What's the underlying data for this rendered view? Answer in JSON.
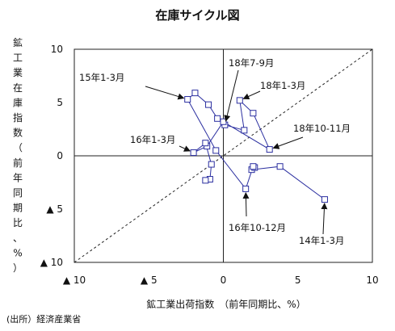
{
  "chart_data": {
    "type": "scatter",
    "title": "在庫サイクル図",
    "xlabel": "鉱工業出荷指数　（前年同期比、%）",
    "ylabel_chars": [
      "鉱",
      "工",
      "業",
      "在",
      "庫",
      "指",
      "数",
      "（",
      "前",
      "年",
      "同",
      "期",
      "比",
      "、",
      "%",
      "）"
    ],
    "source": "(出所）経済産業省",
    "xlim": [
      -10,
      10
    ],
    "ylim": [
      -10,
      10
    ],
    "x_ticks": [
      {
        "value": -10,
        "label": "▲ 10"
      },
      {
        "value": -5,
        "label": "▲ 5"
      },
      {
        "value": 0,
        "label": "0"
      },
      {
        "value": 5,
        "label": "5"
      },
      {
        "value": 10,
        "label": "10"
      }
    ],
    "y_ticks": [
      {
        "value": 10,
        "label": "10"
      },
      {
        "value": 5,
        "label": "5"
      },
      {
        "value": 0,
        "label": "0"
      },
      {
        "value": -5,
        "label": "▲ 5"
      },
      {
        "value": -10,
        "label": "▲ 10"
      }
    ],
    "reference_line": {
      "from": [
        -10,
        -10
      ],
      "to": [
        10,
        10
      ],
      "style": "dashed"
    },
    "series": [
      {
        "line_color": "#2b2fa0",
        "points": [
          {
            "x": 6.8,
            "y": -4.1
          },
          {
            "x": 3.8,
            "y": -1.0
          },
          {
            "x": 1.9,
            "y": -1.3
          },
          {
            "x": 2.1,
            "y": -1.1
          },
          {
            "x": 2.0,
            "y": -1.0
          },
          {
            "x": 1.5,
            "y": -3.1
          },
          {
            "x": -0.5,
            "y": 0.5
          },
          {
            "x": -2.4,
            "y": 5.3
          },
          {
            "x": -1.9,
            "y": 5.9
          },
          {
            "x": -1.0,
            "y": 4.8
          },
          {
            "x": -0.4,
            "y": 3.5
          },
          {
            "x": 0.1,
            "y": 2.9
          },
          {
            "x": 1.4,
            "y": 2.4
          },
          {
            "x": 1.1,
            "y": 5.2
          },
          {
            "x": 2.0,
            "y": 4.0
          },
          {
            "x": 3.1,
            "y": 0.6
          },
          {
            "x": 0.0,
            "y": 3.2
          },
          {
            "x": -1.1,
            "y": 0.9
          },
          {
            "x": -2.0,
            "y": 0.3
          },
          {
            "x": -1.2,
            "y": 1.2
          },
          {
            "x": -0.8,
            "y": -0.8
          },
          {
            "x": -0.9,
            "y": -2.2
          },
          {
            "x": -1.2,
            "y": -2.3
          }
        ]
      }
    ],
    "annotations": [
      {
        "text": "14年1-3月",
        "point": {
          "x": 6.8,
          "y": -4.1
        }
      },
      {
        "text": "15年1-3月",
        "point": {
          "x": -2.4,
          "y": 5.3
        }
      },
      {
        "text": "16年1-3月",
        "point": {
          "x": -2.0,
          "y": 0.3
        }
      },
      {
        "text": "16年10-12月",
        "point": {
          "x": 1.5,
          "y": -3.1
        }
      },
      {
        "text": "18年1-3月",
        "point": {
          "x": 1.1,
          "y": 5.2
        }
      },
      {
        "text": "18年7-9月",
        "point": {
          "x": 0.1,
          "y": 2.9
        }
      },
      {
        "text": "18年10-11月",
        "point": {
          "x": 3.1,
          "y": 0.6
        }
      }
    ]
  }
}
